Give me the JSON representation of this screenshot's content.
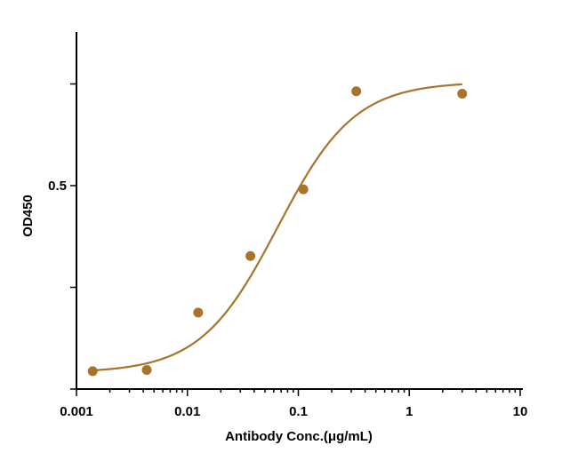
{
  "chart_data": {
    "type": "scatter",
    "xlabel": "Antibody Conc.(μg/mL)",
    "ylabel": "OD450",
    "x_scale": "log",
    "xlim": [
      0.001,
      10
    ],
    "ylim": [
      0.0,
      1.0
    ],
    "x_ticks": [
      0.001,
      0.01,
      0.1,
      1,
      10
    ],
    "x_tick_labels": [
      "0.001",
      "0.01",
      "0.1",
      "1",
      "10"
    ],
    "y_ticks": [
      0.0,
      0.25,
      0.5,
      0.75,
      1.0
    ],
    "y_tick_labels": [
      "",
      "",
      "0.5",
      "",
      ""
    ],
    "grid": false,
    "legend": "none",
    "color": "#a8742c",
    "series": [
      {
        "x": [
          0.0014,
          0.0043,
          0.0125,
          0.037,
          0.111,
          0.333,
          3.0
        ],
        "y": [
          0.044,
          0.047,
          0.188,
          0.327,
          0.491,
          0.732,
          0.726
        ]
      }
    ],
    "fit": {
      "model": "4PL",
      "bottom": 0.04,
      "top": 0.755,
      "ec50": 0.065,
      "hill": 1.25
    }
  }
}
